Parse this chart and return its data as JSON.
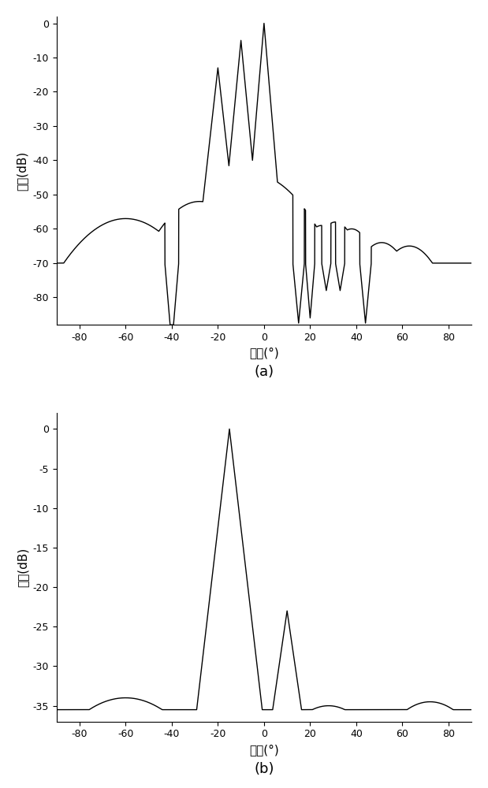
{
  "plot_a": {
    "xlim": [
      -90,
      90
    ],
    "ylim": [
      -88,
      2
    ],
    "yticks": [
      0,
      -10,
      -20,
      -30,
      -40,
      -50,
      -60,
      -70,
      -80
    ],
    "xticks": [
      -80,
      -60,
      -40,
      -20,
      0,
      20,
      40,
      60,
      80
    ],
    "xlabel": "角度(°)",
    "ylabel": "功率(dB)",
    "label": "(a)"
  },
  "plot_b": {
    "xlim": [
      -90,
      90
    ],
    "ylim": [
      -37,
      2
    ],
    "yticks": [
      0,
      -5,
      -10,
      -15,
      -20,
      -25,
      -30,
      -35
    ],
    "xticks": [
      -80,
      -60,
      -40,
      -20,
      0,
      20,
      40,
      60,
      80
    ],
    "xlabel": "角度(°)",
    "ylabel": "功率(dB)",
    "label": "(b)"
  },
  "line_color": "#000000",
  "bg_color": "#ffffff",
  "linewidth": 1.0,
  "font_size": 11,
  "label_font_size": 13
}
